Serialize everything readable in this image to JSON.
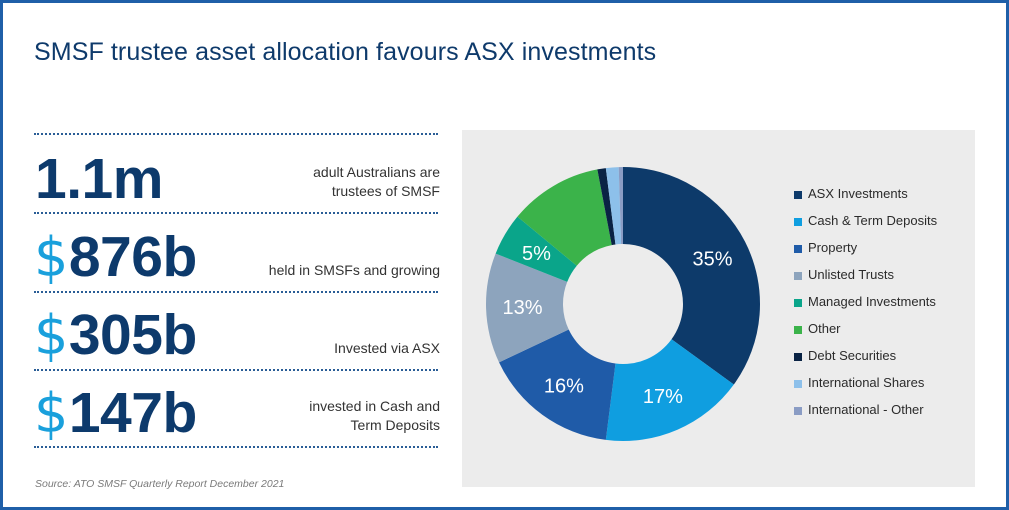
{
  "title": "SMSF trustee asset allocation favours ASX investments",
  "stats": [
    {
      "currency": "",
      "value": "1.1m",
      "desc_line1": "adult Australians are",
      "desc_line2": "trustees of SMSF"
    },
    {
      "currency": "$",
      "value": "876b",
      "desc_line1": "held in SMSFs and growing",
      "desc_line2": ""
    },
    {
      "currency": "$",
      "value": "305b",
      "desc_line1": "Invested via ASX",
      "desc_line2": ""
    },
    {
      "currency": "$",
      "value": "147b",
      "desc_line1": "invested in Cash and",
      "desc_line2": "Term Deposits"
    }
  ],
  "source": "Source: ATO SMSF Quarterly Report December 2021",
  "colors": {
    "title": "#0e3a6b",
    "stat_number": "#0d3a6c",
    "currency": "#19a0dc",
    "border": "#1f5fa8",
    "panel": "#ececec"
  },
  "chart_data": {
    "type": "pie",
    "subtype": "donut",
    "title": "",
    "categories": [
      "ASX Investments",
      "Cash & Term Deposits",
      "Property",
      "Unlisted Trusts",
      "Managed Investments",
      "Other",
      "Debt Securities",
      "International Shares",
      "International - Other"
    ],
    "values": [
      35,
      17,
      16,
      13,
      5,
      11,
      1,
      1.5,
      0.5
    ],
    "labels": [
      "35%",
      "17%",
      "16%",
      "13%",
      "5%",
      "",
      "",
      "",
      ""
    ],
    "colors": [
      "#0d3a6a",
      "#0f9ee0",
      "#1f5ba8",
      "#8da4bd",
      "#0aa58a",
      "#3bb34a",
      "#0a2344",
      "#8dc0ea",
      "#8a9cc4"
    ],
    "legend_position": "right",
    "start_angle_deg": 0,
    "direction": "clockwise"
  },
  "legend": {
    "items": [
      {
        "label": "ASX Investments",
        "color": "#0d3a6a"
      },
      {
        "label": "Cash & Term Deposits",
        "color": "#0f9ee0"
      },
      {
        "label": "Property",
        "color": "#1f5ba8"
      },
      {
        "label": "Unlisted Trusts",
        "color": "#8da4bd"
      },
      {
        "label": "Managed Investments",
        "color": "#0aa58a"
      },
      {
        "label": "Other",
        "color": "#3bb34a"
      },
      {
        "label": "Debt Securities",
        "color": "#0a2344"
      },
      {
        "label": "International Shares",
        "color": "#8dc0ea"
      },
      {
        "label": "International - Other",
        "color": "#8a9cc4"
      }
    ]
  }
}
